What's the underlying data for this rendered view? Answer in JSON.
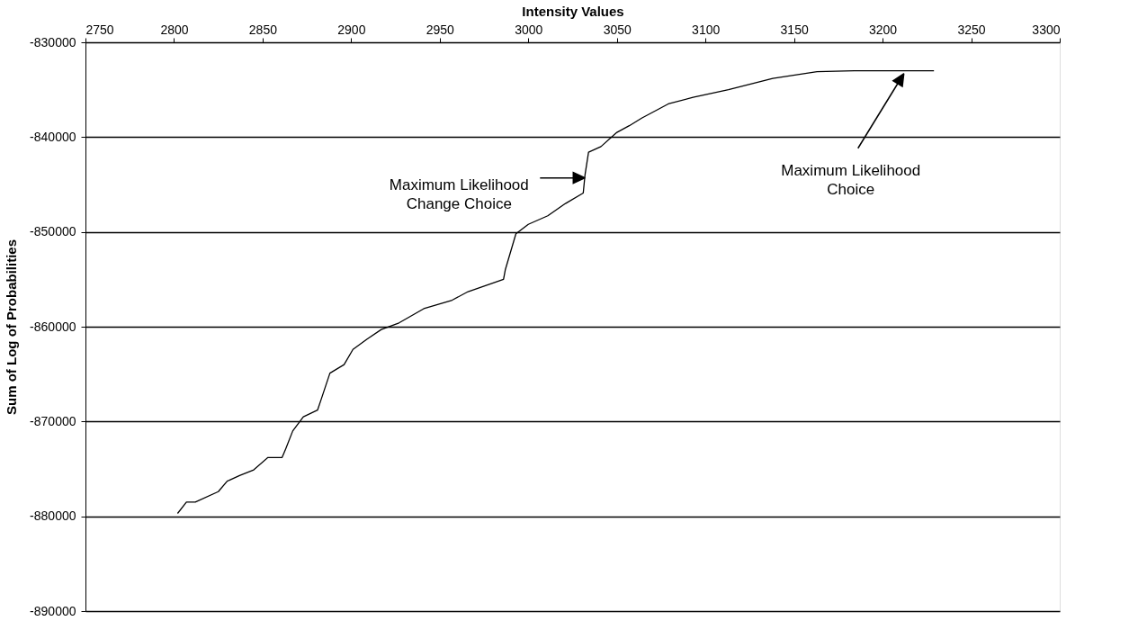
{
  "chart_data": {
    "type": "line",
    "xlabel": "Intensity Values",
    "ylabel": "Sum of Log of Probabilities",
    "x": [
      2802,
      2807,
      2812,
      2825,
      2830,
      2837,
      2845,
      2853,
      2861,
      2863,
      2867,
      2873,
      2881,
      2883,
      2888,
      2896,
      2901,
      2909,
      2917,
      2927,
      2941,
      2957,
      2966,
      2986,
      2987,
      2993,
      3000,
      3011,
      3021,
      3031,
      3032,
      3034,
      3041,
      3050,
      3057,
      3064,
      3079,
      3093,
      3113,
      3138,
      3163,
      3184,
      3229
    ],
    "series": [
      {
        "color": "#000000",
        "values": [
          -879700,
          -878500,
          -878500,
          -877400,
          -876300,
          -875700,
          -875100,
          -873800,
          -873800,
          -872900,
          -871000,
          -869500,
          -868800,
          -867700,
          -864900,
          -864000,
          -862400,
          -861300,
          -860300,
          -859600,
          -858100,
          -857200,
          -856300,
          -855000,
          -854000,
          -850200,
          -849200,
          -848300,
          -847000,
          -845900,
          -844000,
          -841600,
          -841000,
          -839500,
          -838800,
          -838000,
          -836500,
          -835800,
          -835000,
          -833800,
          -833100,
          -833000,
          -833000
        ]
      }
    ],
    "xlim": [
      2750,
      3300
    ],
    "xticks": [
      2750,
      2800,
      2850,
      2900,
      2950,
      3000,
      3050,
      3100,
      3150,
      3200,
      3250,
      3300
    ],
    "ylim": [
      -890000,
      -830000
    ],
    "yticks": [
      -890000,
      -880000,
      -870000,
      -860000,
      -850000,
      -840000,
      -830000
    ],
    "grid": "y",
    "legend": false,
    "marker": "none",
    "line_style": "solid",
    "annotations": [
      {
        "text": "Maximum Likelihood\nChange Choice",
        "x": 3032,
        "y": -844300
      },
      {
        "text": "Maximum Likelihood\nChoice",
        "x": 3212,
        "y": -833300
      }
    ]
  }
}
